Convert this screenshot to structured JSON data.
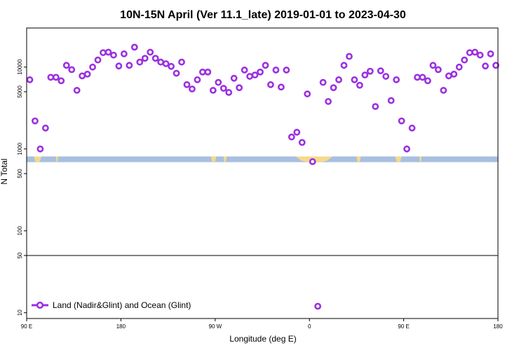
{
  "chart_data": {
    "type": "scatter",
    "title": "10N-15N April (Ver 11.1_late)   2019-01-01 to 2023-04-30",
    "xlabel": "Longitude (deg E)",
    "ylabel": "N Total",
    "x_ticks": [
      {
        "value": 90,
        "label": "90 E"
      },
      {
        "value": 180,
        "label": "180"
      },
      {
        "value": 270,
        "label": "90 W"
      },
      {
        "value": 360,
        "label": "0"
      },
      {
        "value": 450,
        "label": "90 E"
      },
      {
        "value": 540,
        "label": "180"
      }
    ],
    "y_ticks": [
      {
        "value": 10,
        "label": "10"
      },
      {
        "value": 50,
        "label": "50"
      },
      {
        "value": 100,
        "label": "100"
      },
      {
        "value": 500,
        "label": "500"
      },
      {
        "value": 1000,
        "label": "1000"
      },
      {
        "value": 5000,
        "label": "5000"
      },
      {
        "value": 10000,
        "label": "10000"
      }
    ],
    "xlim": [
      90,
      540
    ],
    "ylim": [
      8.5,
      30000
    ],
    "y_scale": "log",
    "reference_line": 50,
    "legend": {
      "label": "Land (Nadir&Glint) and Ocean (Glint)",
      "position": "bottom-left"
    },
    "series": [
      {
        "name": "Land (Nadir&Glint) and Ocean (Glint)",
        "color": "#9b30e0",
        "x": [
          93,
          98,
          103,
          108,
          113,
          118,
          123,
          128,
          133,
          138,
          143,
          148,
          153,
          158,
          163,
          168,
          173,
          178,
          183,
          188,
          193,
          198,
          203,
          208,
          213,
          218,
          223,
          228,
          233,
          238,
          243,
          248,
          253,
          258,
          263,
          268,
          273,
          278,
          283,
          288,
          293,
          298,
          303,
          308,
          313,
          318,
          323,
          328,
          333,
          338,
          343,
          348,
          353,
          358,
          363,
          368,
          373,
          378,
          383,
          388,
          393,
          398,
          403,
          408,
          413,
          418,
          423,
          428,
          433,
          438,
          443,
          448,
          453,
          458,
          463,
          468,
          473,
          478,
          483,
          488,
          493,
          498,
          503,
          508,
          513,
          518,
          523,
          528,
          533,
          538
        ],
        "y": [
          7000,
          2200,
          1000,
          1800,
          7500,
          7500,
          6800,
          10500,
          9300,
          5200,
          7800,
          8200,
          10000,
          12200,
          15000,
          15200,
          14000,
          10300,
          14500,
          10500,
          17500,
          11500,
          12800,
          15200,
          12800,
          11500,
          11000,
          10200,
          8400,
          11500,
          6100,
          5400,
          7000,
          8700,
          8700,
          5200,
          6500,
          5500,
          4900,
          7300,
          5600,
          9200,
          7700,
          8000,
          8700,
          10500,
          6100,
          9200,
          5700,
          9200,
          1400,
          1600,
          1200,
          4700,
          700,
          12,
          6500,
          3800,
          5600,
          7000,
          10500,
          13500,
          7000,
          6000,
          8000,
          8900,
          3300,
          9000,
          7700,
          3900,
          7000,
          2200,
          1000,
          1800,
          7500,
          7500,
          6800,
          10500,
          9300,
          5200,
          7800,
          8200,
          10000,
          12200,
          15000,
          15200,
          14000,
          10300,
          14500,
          10500
        ]
      }
    ],
    "map_band": {
      "y_top": 810,
      "y_bottom": 690,
      "ocean_color": "#a8bfe0",
      "land_color": "#f5d98b"
    }
  }
}
